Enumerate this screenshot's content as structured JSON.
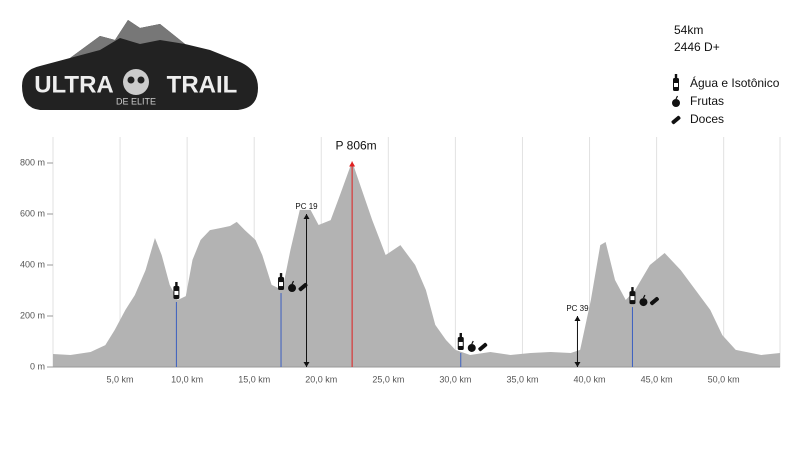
{
  "chart_data": {
    "type": "area",
    "color": "#b3b3b3",
    "logo": {
      "line1": "ULTRA",
      "line2": "TRAIL",
      "tagline": "DE ELITE"
    },
    "summary": [
      "54km",
      "2446 D+"
    ],
    "legend": [
      "Água e Isotônico",
      "Frutas",
      "Doces"
    ],
    "x": [
      0,
      1.3,
      2.8,
      3.9,
      4.6,
      5.4,
      6.1,
      6.9,
      7.6,
      8.1,
      8.7,
      9.3,
      9.9,
      10.4,
      11.0,
      11.7,
      12.5,
      13.2,
      13.7,
      14.3,
      15.1,
      15.6,
      16.3,
      17.1,
      17.7,
      18.4,
      19.2,
      19.8,
      20.7,
      21.4,
      22.3,
      22.9,
      23.8,
      24.8,
      25.9,
      27.0,
      27.8,
      28.5,
      29.3,
      30.0,
      31.1,
      32.6,
      34.1,
      35.6,
      37.1,
      38.6,
      39.3,
      40.1,
      40.8,
      41.2,
      41.9,
      42.7,
      43.4,
      44.5,
      45.6,
      46.8,
      47.9,
      49.0,
      49.9,
      50.9,
      52.8,
      54.2
    ],
    "values": [
      51,
      47,
      59,
      86,
      145,
      224,
      282,
      380,
      506,
      439,
      322,
      263,
      278,
      420,
      498,
      537,
      545,
      553,
      569,
      537,
      498,
      439,
      322,
      302,
      459,
      616,
      616,
      557,
      576,
      675,
      806,
      714,
      576,
      439,
      478,
      400,
      302,
      165,
      106,
      67,
      47,
      59,
      47,
      55,
      59,
      55,
      67,
      263,
      478,
      490,
      341,
      263,
      302,
      400,
      447,
      380,
      302,
      224,
      125,
      67,
      47,
      55
    ],
    "xlim": [
      0,
      54.2
    ],
    "ylim": [
      0,
      902
    ],
    "xticks": [
      {
        "value": 5,
        "label": "5,0 km"
      },
      {
        "value": 10,
        "label": "10,0 km"
      },
      {
        "value": 15,
        "label": "15,0 km"
      },
      {
        "value": 20,
        "label": "20,0 km"
      },
      {
        "value": 25,
        "label": "25,0 km"
      },
      {
        "value": 30,
        "label": "30,0 km"
      },
      {
        "value": 35,
        "label": "35,0 km"
      },
      {
        "value": 40,
        "label": "40,0 km"
      },
      {
        "value": 45,
        "label": "45,0 km"
      },
      {
        "value": 50,
        "label": "50,0 km"
      }
    ],
    "yticks": [
      {
        "value": 0,
        "label": "0 m"
      },
      {
        "value": 200,
        "label": "200 m"
      },
      {
        "value": 400,
        "label": "400 m"
      },
      {
        "value": 600,
        "label": "600 m"
      },
      {
        "value": 800,
        "label": "800 m"
      }
    ],
    "grid": true,
    "peak": {
      "label": "P 806m",
      "x": 22.3,
      "y": 806,
      "color": "#e02020"
    },
    "checkpoints": [
      {
        "label": "PC 19",
        "x": 18.9,
        "y": 600
      },
      {
        "label": "PC 39",
        "x": 39.1,
        "y": 200
      }
    ],
    "aid_stations": [
      {
        "x": 9.2,
        "y": 255,
        "items": [
          0
        ]
      },
      {
        "x": 17.0,
        "y": 290,
        "items": [
          0,
          1,
          2
        ]
      },
      {
        "x": 30.4,
        "y": 55,
        "items": [
          0,
          1,
          2
        ]
      },
      {
        "x": 43.2,
        "y": 235,
        "items": [
          0,
          1,
          2
        ]
      }
    ],
    "aid_color": "#3b5fc0"
  }
}
